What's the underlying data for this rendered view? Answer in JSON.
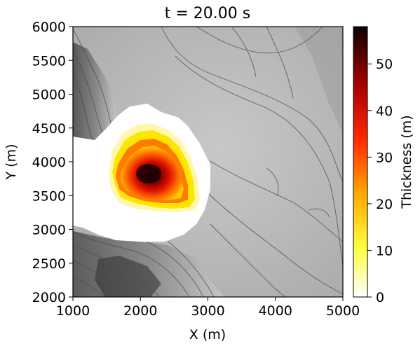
{
  "chart_data": {
    "type": "heatmap",
    "title": "t = 20.00 s",
    "xlabel": "X (m)",
    "ylabel": "Y (m)",
    "xlim": [
      1000,
      5000
    ],
    "ylim": [
      2000,
      6000
    ],
    "xticks": [
      1000,
      2000,
      3000,
      4000,
      5000
    ],
    "yticks": [
      2000,
      2500,
      3000,
      3500,
      4000,
      4500,
      5000,
      5500,
      6000
    ],
    "background": "grayscale hillshade terrain with elevation contour lines",
    "colormap": "hot_r",
    "colorbar": {
      "label": "Thickness (m)",
      "range": [
        0,
        58
      ],
      "ticks": [
        0,
        10,
        20,
        30,
        40,
        50
      ]
    },
    "flow_extent": {
      "x_range": [
        1000,
        3050
      ],
      "y_range": [
        2850,
        4800
      ]
    },
    "flow_core": {
      "x_range": [
        1650,
        2750
      ],
      "y_range": [
        3350,
        4550
      ],
      "peak_thickness_location": [
        2150,
        3850
      ],
      "peak_thickness": 55
    }
  },
  "colors": {
    "core_dark": "#1a0000",
    "core_red": "#e01000",
    "core_orange": "#ff6a00",
    "core_yellow": "#ffe600",
    "low_thickness": "#ffffff"
  }
}
